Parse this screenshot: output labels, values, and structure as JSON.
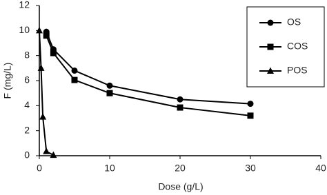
{
  "chart_data": {
    "type": "line",
    "x_label": "Dose (g/L)",
    "y_label": "F (mg/L)",
    "xlim": [
      0,
      40
    ],
    "xticks": [
      0,
      10,
      20,
      30,
      40
    ],
    "ylim": [
      0,
      12
    ],
    "yticks": [
      0,
      2,
      4,
      6,
      8,
      10,
      12
    ],
    "grid": false,
    "legend": "upper right",
    "series": [
      {
        "name": "OS",
        "color": "#000000",
        "marker": "circle",
        "x": [
          1,
          2,
          5,
          10,
          20,
          30
        ],
        "values": [
          9.9,
          8.5,
          6.8,
          5.6,
          4.5,
          4.15
        ]
      },
      {
        "name": "COS",
        "color": "#000000",
        "marker": "square",
        "x": [
          1,
          2,
          5,
          10,
          20,
          30
        ],
        "values": [
          9.6,
          8.2,
          6.05,
          5.0,
          3.85,
          3.2
        ]
      },
      {
        "name": "POS",
        "color": "#000000",
        "marker": "triangle",
        "x": [
          0,
          0.25,
          0.5,
          1,
          2
        ],
        "values": [
          10,
          7.0,
          3.1,
          0.35,
          0.05
        ]
      }
    ]
  }
}
